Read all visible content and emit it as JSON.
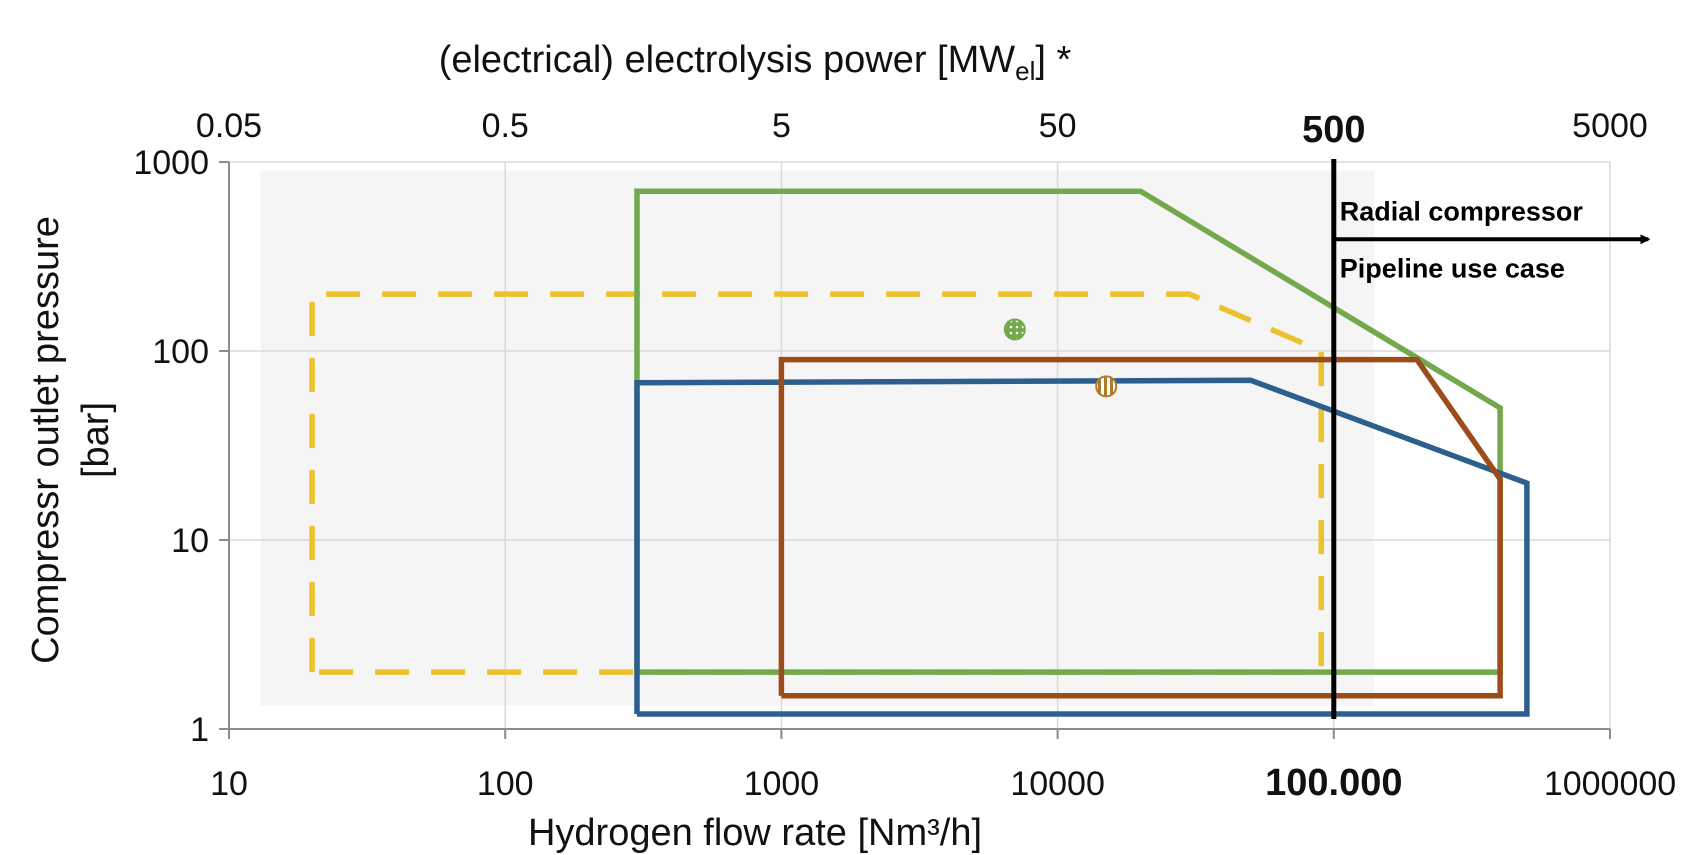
{
  "chart_data": {
    "type": "area",
    "x_axis": {
      "label": "Hydrogen flow rate [Nm³/h]",
      "scale": "log",
      "range": [
        10,
        1000000
      ],
      "ticks": [
        {
          "value": 10,
          "label": "10",
          "bold": false
        },
        {
          "value": 100,
          "label": "100",
          "bold": false
        },
        {
          "value": 1000,
          "label": "1000",
          "bold": false
        },
        {
          "value": 10000,
          "label": "10000",
          "bold": false
        },
        {
          "value": 100000,
          "label": "100.000",
          "bold": true
        },
        {
          "value": 1000000,
          "label": "1000000",
          "bold": false
        }
      ]
    },
    "x2_axis": {
      "label_main": "(electrical) electrolysis power [MW",
      "label_sub": "el",
      "label_end": "] *",
      "ticks": [
        {
          "value": 10,
          "label": "0.05",
          "bold": false
        },
        {
          "value": 100,
          "label": "0.5",
          "bold": false
        },
        {
          "value": 1000,
          "label": "5",
          "bold": false
        },
        {
          "value": 10000,
          "label": "50",
          "bold": false
        },
        {
          "value": 100000,
          "label": "500",
          "bold": true
        },
        {
          "value": 1000000,
          "label": "5000",
          "bold": false
        }
      ]
    },
    "y_axis": {
      "label_line1": "Compressr outlet pressure",
      "label_line2": "[bar]",
      "scale": "log",
      "range": [
        1,
        1000
      ],
      "ticks": [
        {
          "value": 1,
          "label": "1"
        },
        {
          "value": 10,
          "label": "10"
        },
        {
          "value": 100,
          "label": "100"
        },
        {
          "value": 1000,
          "label": "1000"
        }
      ]
    },
    "grid": true,
    "shaded_region": {
      "x": [
        13,
        140000
      ],
      "y": [
        1.33,
        900
      ],
      "color": "#f5f5f5"
    },
    "series": [
      {
        "color": "#ecc22c",
        "dashed": true,
        "points": [
          [
            20,
            2
          ],
          [
            20,
            200
          ],
          [
            30000,
            200
          ],
          [
            90000,
            100
          ],
          [
            90000,
            2
          ],
          [
            20,
            2
          ]
        ]
      },
      {
        "color": "#72a94c",
        "dashed": false,
        "points": [
          [
            300,
            2
          ],
          [
            300,
            700
          ],
          [
            20000,
            700
          ],
          [
            400000,
            50
          ],
          [
            400000,
            2
          ],
          [
            300,
            2
          ]
        ]
      },
      {
        "color": "#2c5f8d",
        "dashed": false,
        "points": [
          [
            300,
            1.2
          ],
          [
            300,
            68
          ],
          [
            50000,
            70
          ],
          [
            500000,
            20
          ],
          [
            500000,
            1.2
          ],
          [
            300,
            1.2
          ]
        ]
      },
      {
        "color": "#9c4b1a",
        "dashed": false,
        "points": [
          [
            1000,
            1.5
          ],
          [
            1000,
            90
          ],
          [
            200000,
            90
          ],
          [
            400000,
            21
          ],
          [
            400000,
            1.5
          ],
          [
            1000,
            1.5
          ]
        ]
      }
    ],
    "markers": [
      {
        "x": 7000,
        "y": 130,
        "color": "#72a94c",
        "pattern": "dots"
      },
      {
        "x": 15000,
        "y": 65,
        "color": "#b07a2a",
        "pattern": "stripes"
      }
    ],
    "vertical_line": {
      "x": 100000,
      "color": "#000000"
    },
    "annotations": {
      "arrow_top": "Radial compressor",
      "arrow_bottom": "Pipeline use case"
    }
  }
}
